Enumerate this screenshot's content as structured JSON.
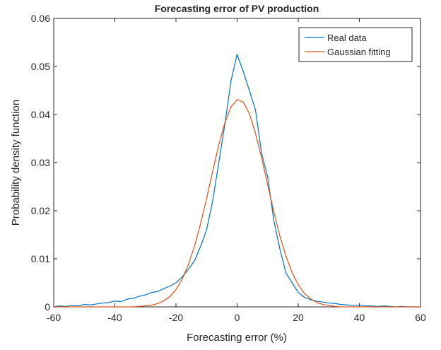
{
  "chart_data": {
    "type": "line",
    "title": "Forecasting error of PV production",
    "xlabel": "Forecasting error (%)",
    "ylabel": "Probability density function",
    "x": [
      -60,
      -58,
      -56,
      -54,
      -52,
      -50,
      -48,
      -46,
      -44,
      -42,
      -40,
      -38,
      -36,
      -34,
      -32,
      -30,
      -28,
      -26,
      -24,
      -22,
      -20,
      -18,
      -16,
      -14,
      -12,
      -10,
      -8,
      -6,
      -4,
      -2,
      0,
      2,
      4,
      6,
      8,
      10,
      12,
      14,
      16,
      18,
      20,
      22,
      24,
      26,
      28,
      30,
      32,
      34,
      36,
      38,
      40,
      42,
      44,
      46,
      48,
      50,
      52,
      54,
      56,
      58,
      60
    ],
    "series": [
      {
        "name": "Real data",
        "color": "#0072bd",
        "values": [
          0,
          0.0002,
          0.0001,
          0.0003,
          0.0002,
          0.0005,
          0.0004,
          0.0006,
          0.0008,
          0.0009,
          0.0012,
          0.0011,
          0.0016,
          0.0018,
          0.0022,
          0.0025,
          0.003,
          0.0032,
          0.0038,
          0.0043,
          0.005,
          0.0062,
          0.0078,
          0.0095,
          0.0125,
          0.016,
          0.022,
          0.03,
          0.038,
          0.047,
          0.0525,
          0.049,
          0.045,
          0.041,
          0.032,
          0.027,
          0.018,
          0.012,
          0.007,
          0.005,
          0.003,
          0.002,
          0.0015,
          0.0012,
          0.001,
          0.0008,
          0.0007,
          0.0005,
          0.0004,
          0.0003,
          0.0003,
          0.0002,
          0.0002,
          0.0001,
          0.0002,
          0.0001,
          0,
          0.0001,
          0,
          0,
          0
        ]
      },
      {
        "name": "Gaussian fitting",
        "color": "#d95319",
        "values": [
          0,
          0,
          0,
          0,
          0,
          0,
          0,
          0,
          0,
          0,
          0,
          0,
          0,
          0,
          0.0001,
          0.0002,
          0.00036,
          0.00068,
          0.00125,
          0.00217,
          0.0036,
          0.0057,
          0.0087,
          0.0125,
          0.0172,
          0.0225,
          0.0282,
          0.0337,
          0.0383,
          0.0416,
          0.0431,
          0.0426,
          0.0402,
          0.0361,
          0.031,
          0.0254,
          0.0198,
          0.0147,
          0.0105,
          0.0071,
          0.0046,
          0.0028,
          0.0017,
          0.0009,
          0.0005,
          0.0003,
          0.0001,
          0,
          0,
          0,
          0,
          0,
          0,
          0,
          0,
          0,
          0,
          0,
          0,
          0,
          0
        ]
      }
    ],
    "xlim": [
      -60,
      60
    ],
    "xticks": [
      -60,
      -40,
      -20,
      0,
      20,
      40,
      60
    ],
    "ylim": [
      0,
      0.06
    ],
    "yticks": [
      0,
      0.01,
      0.02,
      0.03,
      0.04,
      0.05,
      0.06
    ],
    "legend": "top-right"
  }
}
